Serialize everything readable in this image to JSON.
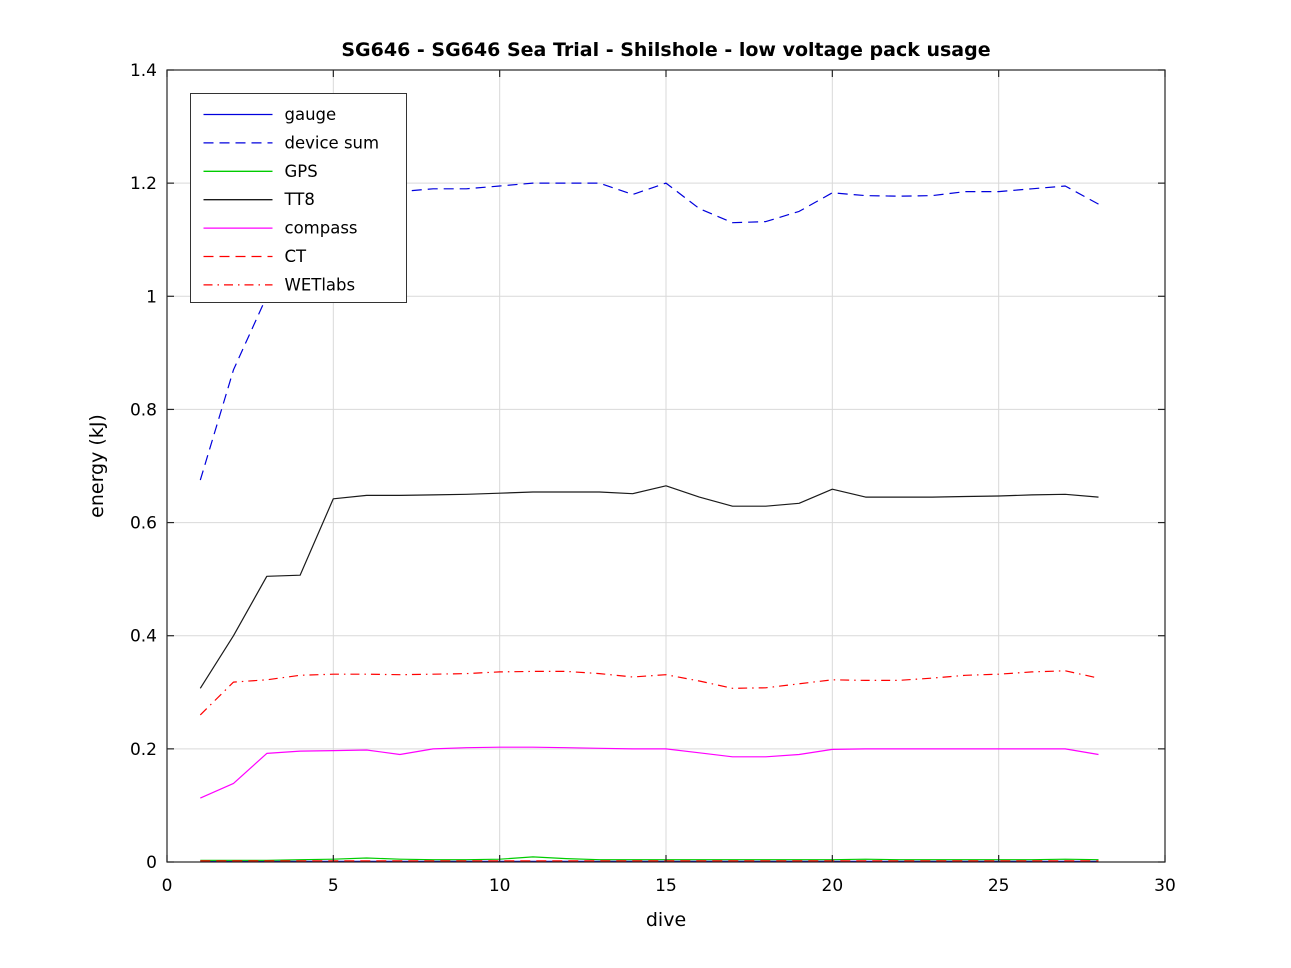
{
  "chart_data": {
    "type": "line",
    "title": "SG646 - SG646 Sea Trial - Shilshole - low voltage pack usage",
    "xlabel": "dive",
    "ylabel": "energy (kJ)",
    "xlim": [
      0,
      30
    ],
    "ylim": [
      0,
      1.4
    ],
    "xticks": [
      0,
      5,
      10,
      15,
      20,
      25,
      30
    ],
    "xtick_labels": [
      "0",
      "5",
      "10",
      "15",
      "20",
      "25",
      "30"
    ],
    "yticks": [
      0,
      0.2,
      0.4,
      0.6,
      0.8,
      1,
      1.2,
      1.4
    ],
    "ytick_labels": [
      "0",
      "0.2",
      "0.4",
      "0.6",
      "0.8",
      "1",
      "1.2",
      "1.4"
    ],
    "grid": true,
    "grid_color": "#d9d9d9",
    "axis_color": "#262626",
    "legend_position": "upper-left",
    "x": [
      1,
      2,
      3,
      4,
      5,
      6,
      7,
      8,
      9,
      10,
      11,
      12,
      13,
      14,
      15,
      16,
      17,
      18,
      19,
      20,
      21,
      22,
      23,
      24,
      25,
      26,
      27,
      28
    ],
    "series": [
      {
        "name": "gauge",
        "color": "#0000dd",
        "style": "solid",
        "values": [
          0.001,
          0.001,
          0.001,
          0.001,
          0.001,
          0.001,
          0.001,
          0.001,
          0.001,
          0.001,
          0.001,
          0.001,
          0.001,
          0.001,
          0.001,
          0.001,
          0.001,
          0.001,
          0.001,
          0.001,
          0.001,
          0.001,
          0.001,
          0.001,
          0.001,
          0.001,
          0.001,
          0.001
        ]
      },
      {
        "name": "device sum",
        "color": "#0000dd",
        "style": "dashed",
        "values": [
          0.675,
          0.87,
          1.0,
          1.09,
          1.14,
          1.17,
          1.185,
          1.19,
          1.19,
          1.195,
          1.2,
          1.2,
          1.2,
          1.18,
          1.2,
          1.155,
          1.13,
          1.132,
          1.15,
          1.183,
          1.178,
          1.177,
          1.178,
          1.185,
          1.185,
          1.19,
          1.195,
          1.163
        ]
      },
      {
        "name": "GPS",
        "color": "#00cc00",
        "style": "solid",
        "values": [
          0.003,
          0.003,
          0.003,
          0.004,
          0.005,
          0.007,
          0.005,
          0.004,
          0.004,
          0.005,
          0.009,
          0.006,
          0.004,
          0.004,
          0.004,
          0.004,
          0.004,
          0.004,
          0.004,
          0.004,
          0.005,
          0.004,
          0.004,
          0.004,
          0.004,
          0.004,
          0.005,
          0.004
        ]
      },
      {
        "name": "TT8",
        "color": "#1a1a1a",
        "style": "solid",
        "values": [
          0.307,
          0.4,
          0.505,
          0.507,
          0.642,
          0.648,
          0.648,
          0.649,
          0.65,
          0.652,
          0.654,
          0.654,
          0.654,
          0.651,
          0.665,
          0.645,
          0.629,
          0.629,
          0.634,
          0.659,
          0.645,
          0.645,
          0.645,
          0.646,
          0.647,
          0.649,
          0.65,
          0.645
        ]
      },
      {
        "name": "compass",
        "color": "#ff00ff",
        "style": "solid",
        "values": [
          0.113,
          0.139,
          0.192,
          0.196,
          0.197,
          0.198,
          0.19,
          0.2,
          0.202,
          0.203,
          0.203,
          0.202,
          0.201,
          0.2,
          0.2,
          0.193,
          0.186,
          0.186,
          0.19,
          0.199,
          0.2,
          0.2,
          0.2,
          0.2,
          0.2,
          0.2,
          0.2,
          0.19
        ]
      },
      {
        "name": "CT",
        "color": "#ff0000",
        "style": "dashed",
        "values": [
          0.002,
          0.002,
          0.002,
          0.002,
          0.002,
          0.002,
          0.002,
          0.002,
          0.002,
          0.002,
          0.002,
          0.002,
          0.002,
          0.002,
          0.002,
          0.002,
          0.002,
          0.002,
          0.002,
          0.002,
          0.002,
          0.002,
          0.002,
          0.002,
          0.002,
          0.002,
          0.002,
          0.002
        ]
      },
      {
        "name": "WETlabs",
        "color": "#ff0000",
        "style": "dashdot",
        "values": [
          0.26,
          0.318,
          0.322,
          0.33,
          0.332,
          0.332,
          0.331,
          0.332,
          0.333,
          0.336,
          0.337,
          0.337,
          0.333,
          0.327,
          0.331,
          0.32,
          0.307,
          0.308,
          0.315,
          0.322,
          0.321,
          0.321,
          0.325,
          0.33,
          0.332,
          0.336,
          0.338,
          0.325
        ]
      }
    ]
  }
}
